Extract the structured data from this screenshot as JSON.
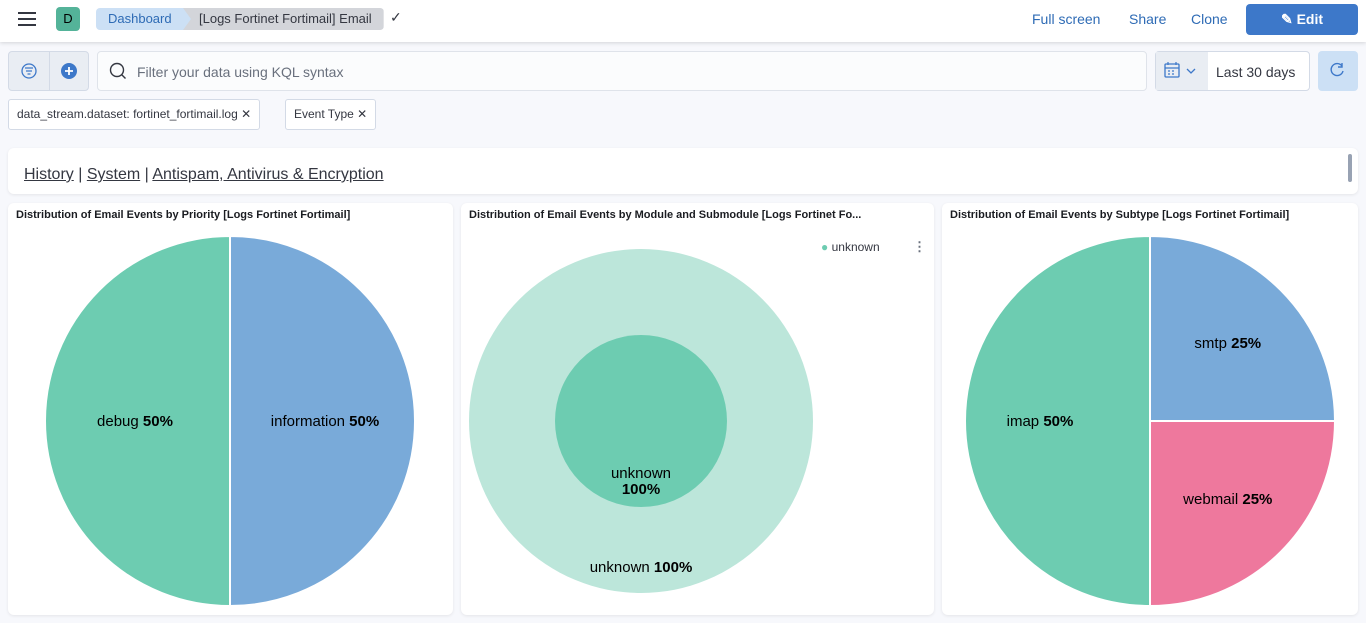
{
  "header": {
    "avatar": "D",
    "breadcrumbs": [
      "Dashboard",
      "[Logs Fortinet Fortimail] Email"
    ],
    "actions": [
      "Full screen",
      "Share",
      "Clone"
    ],
    "edit_label": "Edit"
  },
  "query": {
    "placeholder": "Filter your data using KQL syntax",
    "date_range": "Last 30 days"
  },
  "filters": [
    "data_stream.dataset: fortinet_fortimail.log",
    "Event Type"
  ],
  "nav_links": {
    "items": [
      "History",
      "System",
      "Antispam, Antivirus & Encryption"
    ],
    "separator": "|"
  },
  "colors": {
    "green": "#6dccb1",
    "blue": "#79aad9",
    "pink": "#ee789d",
    "light_green": "#bce6da",
    "accent": "#3d78c9"
  },
  "panels": [
    {
      "title": "Distribution of Email Events by Priority [Logs Fortinet Fortimail]"
    },
    {
      "title": "Distribution of Email Events by Module and Submodule [Logs Fortinet Fo...",
      "legend": [
        "unknown"
      ]
    },
    {
      "title": "Distribution of Email Events by Subtype [Logs Fortinet Fortimail]"
    }
  ],
  "chart_data": [
    {
      "type": "pie",
      "slices": [
        {
          "label": "information",
          "value": 50,
          "color": "#79aad9"
        },
        {
          "label": "debug",
          "value": 50,
          "color": "#6dccb1"
        }
      ]
    },
    {
      "type": "pie",
      "donut": true,
      "rings": [
        {
          "level": "inner",
          "slices": [
            {
              "label": "unknown",
              "value": 100,
              "color": "#6dccb1"
            }
          ]
        },
        {
          "level": "outer",
          "slices": [
            {
              "label": "unknown",
              "value": 100,
              "color": "#bce6da"
            }
          ]
        }
      ],
      "legend": [
        "unknown"
      ],
      "legend_position": "top-right"
    },
    {
      "type": "pie",
      "slices": [
        {
          "label": "smtp",
          "value": 25,
          "color": "#79aad9"
        },
        {
          "label": "webmail",
          "value": 25,
          "color": "#ee789d"
        },
        {
          "label": "imap",
          "value": 50,
          "color": "#6dccb1"
        }
      ]
    }
  ]
}
